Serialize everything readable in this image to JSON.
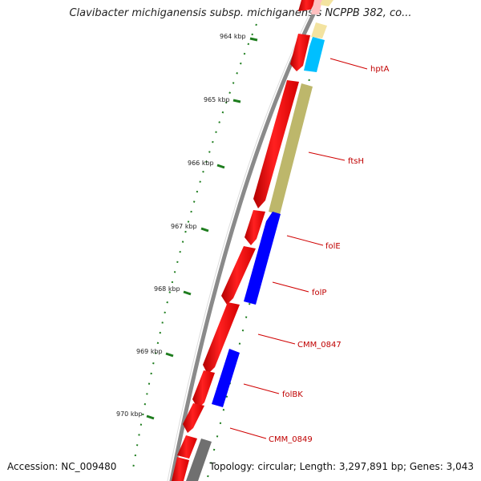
{
  "title": "Clavibacter michiganensis subsp. michiganensis NCPPB 382, co...",
  "footer": {
    "accession": "Accession: NC_009480",
    "summary": "Topology: circular; Length: 3,297,891 bp; Genes: 3,043"
  },
  "scale_labels": [
    "964 kbp",
    "965 kbp",
    "966 kbp",
    "967 kbp",
    "968 kbp",
    "969 kbp",
    "970 kbp"
  ],
  "genes": [
    {
      "name": "hptA",
      "color": "#00bfff"
    },
    {
      "name": "ftsH",
      "color": "#bdb76b"
    },
    {
      "name": "folE",
      "color": "#0000ff"
    },
    {
      "name": "folP",
      "color": "#0000ff"
    },
    {
      "name": "CMM_0847",
      "color": "#ff0000"
    },
    {
      "name": "folBK",
      "color": "#0000ff"
    },
    {
      "name": "CMM_0849",
      "color": "#ff0000"
    }
  ],
  "colors": {
    "cds": "#ff0000",
    "cds_highlight": "#0000ff",
    "hptA": "#00bfff",
    "ftsH": "#bdb76b",
    "backbone": "#7f7f7f",
    "label": "#c00000",
    "gc_skew": "#1e7d1e"
  }
}
